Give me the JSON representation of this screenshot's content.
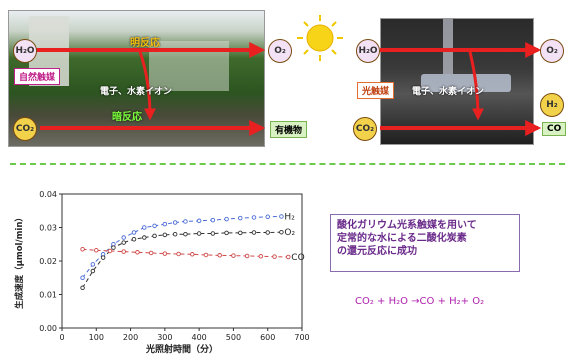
{
  "top": {
    "h2o_left": "H₂O",
    "h2o_right": "H₂O",
    "o2_left": "O₂",
    "o2_right": "O₂",
    "h2": "H₂",
    "co2_left": "CO₂",
    "co2_right": "CO₂",
    "photoreaction": "明反応",
    "dark_reaction": "暗反応",
    "natural_catalyst": "自然触媒",
    "photocatalyst": "光触媒",
    "electrons_left": "電子、水素イオン",
    "electrons_right": "電子、水素イオン",
    "organic": "有機物",
    "co": "CO"
  },
  "note": {
    "line1": "酸化ガリウム光系触媒を用いて",
    "line2": "定常的な水による二酸化炭素",
    "line3": "の還元反応に成功"
  },
  "equation": "CO₂ + H₂O →CO + H₂+ O₂",
  "chart_data": {
    "type": "scatter",
    "xlabel": "光照射時間（分）",
    "ylabel": "生成速度（μmol/min）",
    "xlim": [
      0,
      700
    ],
    "ylim": [
      0,
      0.04
    ],
    "xticks": [
      "0",
      "100",
      "200",
      "300",
      "400",
      "500",
      "600",
      "700"
    ],
    "yticks": [
      "0.00",
      "0.01",
      "0.02",
      "0.03",
      "0.04"
    ],
    "series": [
      {
        "name": "H₂",
        "color": "#4a6cd8",
        "x": [
          60,
          90,
          120,
          150,
          180,
          210,
          240,
          270,
          300,
          330,
          360,
          400,
          440,
          480,
          520,
          560,
          600,
          640
        ],
        "y": [
          0.015,
          0.019,
          0.022,
          0.025,
          0.027,
          0.0285,
          0.03,
          0.0305,
          0.031,
          0.0315,
          0.0318,
          0.032,
          0.0322,
          0.0325,
          0.0328,
          0.033,
          0.0332,
          0.0333
        ]
      },
      {
        "name": "O₂",
        "color": "#333333",
        "x": [
          60,
          90,
          120,
          150,
          180,
          210,
          240,
          270,
          300,
          330,
          360,
          400,
          440,
          480,
          520,
          560,
          600,
          640
        ],
        "y": [
          0.012,
          0.017,
          0.021,
          0.024,
          0.0255,
          0.0265,
          0.027,
          0.0275,
          0.0278,
          0.028,
          0.028,
          0.0282,
          0.0282,
          0.0284,
          0.0284,
          0.0285,
          0.0285,
          0.0286
        ]
      },
      {
        "name": "CO",
        "color": "#d04848",
        "x": [
          60,
          100,
          140,
          180,
          220,
          260,
          300,
          340,
          380,
          420,
          460,
          500,
          540,
          580,
          620,
          660
        ],
        "y": [
          0.0235,
          0.0232,
          0.023,
          0.0228,
          0.0226,
          0.0224,
          0.0222,
          0.0221,
          0.022,
          0.0218,
          0.0217,
          0.0216,
          0.0215,
          0.0214,
          0.0213,
          0.0212
        ]
      }
    ]
  }
}
